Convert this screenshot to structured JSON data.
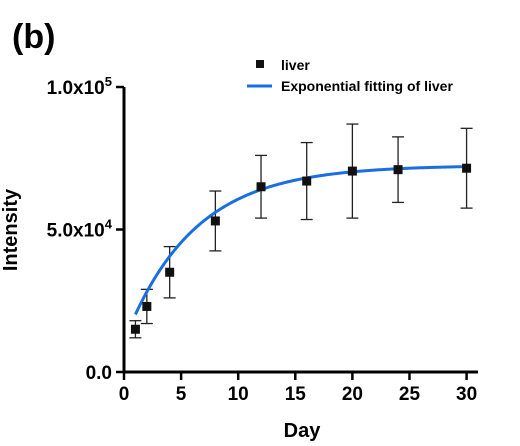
{
  "panel_label": "(b)",
  "chart_data": {
    "type": "scatter",
    "xlabel": "Day",
    "ylabel": "Intensity",
    "xlim": [
      0,
      31
    ],
    "ylim": [
      0,
      100000
    ],
    "x_ticks": [
      0,
      5,
      10,
      15,
      20,
      25,
      30
    ],
    "y_ticks": [
      {
        "value": 0,
        "mantissa": "0.0",
        "exp": ""
      },
      {
        "value": 50000,
        "mantissa": "5.0x10",
        "exp": "4"
      },
      {
        "value": 100000,
        "mantissa": "1.0x10",
        "exp": "5"
      }
    ],
    "legend_position": "top-right",
    "series": [
      {
        "name": "liver",
        "marker": "square",
        "color": "#111111",
        "x": [
          1,
          2,
          4,
          8,
          12,
          16,
          20,
          24,
          30
        ],
        "y": [
          15000,
          23000,
          35000,
          53000,
          65000,
          67000,
          70500,
          71000,
          71500
        ],
        "err": [
          3000,
          6000,
          9000,
          10500,
          11000,
          13500,
          16500,
          11500,
          14000
        ]
      },
      {
        "name": "Exponential fitting of liver",
        "type": "line",
        "color": "#1a6fe0",
        "x_range": [
          1,
          30
        ],
        "fit": {
          "plateau": 72500,
          "y0": 10800,
          "k": 0.165
        }
      }
    ]
  }
}
